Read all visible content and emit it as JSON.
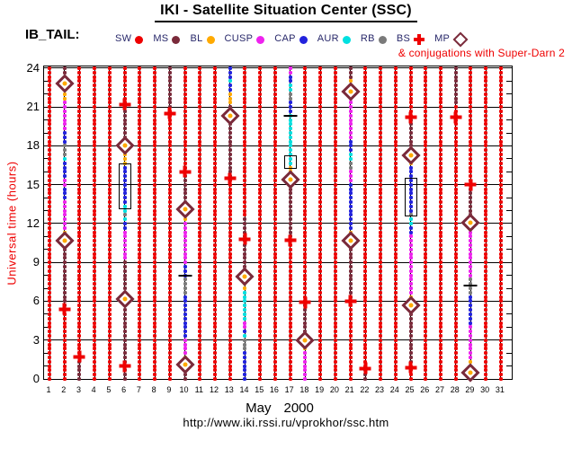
{
  "header": {
    "title": "IKI - Satellite Situation Center (SSC)",
    "dataset_label": "IB_TAIL:",
    "conjugation_note": "& conjugations with Super-Darn 2"
  },
  "legend": [
    {
      "label": "SW",
      "symbol": "dot",
      "color": "#ee0000"
    },
    {
      "label": "MS",
      "symbol": "dot",
      "color": "#7a2a3a"
    },
    {
      "label": "BL",
      "symbol": "dot",
      "color": "#ffaa00"
    },
    {
      "label": "CUSP",
      "symbol": "dot",
      "color": "#ee22ee"
    },
    {
      "label": "CAP",
      "symbol": "dot",
      "color": "#2222dd"
    },
    {
      "label": "AUR",
      "symbol": "dot",
      "color": "#00e0e0"
    },
    {
      "label": "RB",
      "symbol": "dot",
      "color": "#7a7a7a"
    },
    {
      "label": "BS",
      "symbol": "cross",
      "color": "#ee0000"
    },
    {
      "label": "MP",
      "symbol": "diamond",
      "color": "#7a2a3a"
    }
  ],
  "axes": {
    "y_label": "Universal time (hours)",
    "y_ticks": [
      0,
      3,
      6,
      9,
      12,
      15,
      18,
      21,
      24
    ],
    "y_range": [
      0,
      24
    ],
    "x_ticks": [
      1,
      2,
      3,
      4,
      5,
      6,
      7,
      8,
      9,
      10,
      11,
      12,
      13,
      14,
      15,
      16,
      17,
      18,
      19,
      20,
      21,
      22,
      23,
      24,
      25,
      26,
      27,
      28,
      29,
      30,
      31
    ],
    "month": "May",
    "year": "2000"
  },
  "footer": {
    "url": "http://www.iki.rssi.ru/vprokhor/ssc.htm"
  },
  "chart_data": {
    "type": "scatter",
    "title": "IKI - Satellite Situation Center (SSC) - IB_TAIL, May 2000",
    "x_unit": "day of month",
    "y_unit": "universal time, hours",
    "dot_interval_hours": 0.3333,
    "grid": true,
    "regions": {
      "SW": "#ee0000",
      "MS": "#7a2a3a",
      "BL": "#ffaa00",
      "CUSP": "#ee22ee",
      "CAP": "#2222dd",
      "AUR": "#00e0e0",
      "RB": "#7a7a7a"
    },
    "default_region": "SW",
    "day_segments": {
      "2": [
        [
          24,
          23.3,
          "MS"
        ],
        [
          23.3,
          21.4,
          "BL"
        ],
        [
          21.4,
          19.2,
          "CUSP"
        ],
        [
          19.2,
          18.3,
          "CAP"
        ],
        [
          18.3,
          17.3,
          "RB"
        ],
        [
          17.3,
          17.0,
          "AUR"
        ],
        [
          17.0,
          15.6,
          "CAP"
        ],
        [
          15.6,
          14.8,
          "CUSP"
        ],
        [
          14.8,
          13.7,
          "CAP"
        ],
        [
          13.7,
          11.4,
          "CUSP"
        ],
        [
          11.4,
          10.9,
          "BL"
        ],
        [
          10.9,
          5.6,
          "MS"
        ]
      ],
      "3": [
        [
          1.8,
          0,
          "MS"
        ]
      ],
      "6": [
        [
          21.3,
          18.0,
          "MS"
        ],
        [
          18.0,
          16.5,
          "BL"
        ],
        [
          16.5,
          13.4,
          "CAP"
        ],
        [
          13.4,
          12.9,
          "AUR"
        ],
        [
          12.9,
          12.5,
          "RB"
        ],
        [
          12.5,
          12.2,
          "AUR"
        ],
        [
          12.2,
          11.6,
          "CAP"
        ],
        [
          11.6,
          9.2,
          "CUSP"
        ],
        [
          9.2,
          0,
          "MS"
        ]
      ],
      "9": [
        [
          24,
          20.7,
          "MS"
        ]
      ],
      "10": [
        [
          15.9,
          13.2,
          "MS"
        ],
        [
          13.2,
          12.2,
          "BL"
        ],
        [
          12.2,
          9.0,
          "CUSP"
        ],
        [
          9.0,
          8.0,
          "CAP"
        ],
        [
          8.0,
          6.6,
          "RB"
        ],
        [
          6.6,
          3.2,
          "CAP"
        ],
        [
          3.2,
          2.0,
          "CUSP"
        ],
        [
          2.0,
          1.4,
          "BL"
        ],
        [
          1.4,
          0,
          "MS"
        ]
      ],
      "13": [
        [
          24,
          23.3,
          "CAP"
        ],
        [
          23.3,
          22.9,
          "AUR"
        ],
        [
          22.9,
          22.2,
          "CAP"
        ],
        [
          22.2,
          21.2,
          "BL"
        ],
        [
          21.2,
          15.5,
          "MS"
        ]
      ],
      "14": [
        [
          12.6,
          8.1,
          "MS"
        ],
        [
          8.1,
          6.9,
          "BL"
        ],
        [
          6.9,
          4.5,
          "AUR"
        ],
        [
          4.5,
          3.9,
          "CUSP"
        ],
        [
          3.9,
          3.5,
          "CAP"
        ],
        [
          3.5,
          3.2,
          "AUR"
        ],
        [
          3.2,
          2.1,
          "RB"
        ],
        [
          2.1,
          0,
          "CAP"
        ]
      ],
      "17": [
        [
          24,
          23.4,
          "CUSP"
        ],
        [
          23.4,
          22.8,
          "CAP"
        ],
        [
          22.8,
          22.2,
          "AUR"
        ],
        [
          22.2,
          21.4,
          "RB"
        ],
        [
          21.4,
          20.6,
          "CAP"
        ],
        [
          20.6,
          16.4,
          "AUR"
        ],
        [
          16.4,
          15.6,
          "BL"
        ],
        [
          15.6,
          10.8,
          "MS"
        ]
      ],
      "18": [
        [
          5.8,
          3.1,
          "MS"
        ],
        [
          3.1,
          2.3,
          "BL"
        ],
        [
          2.3,
          0,
          "CUSP"
        ]
      ],
      "21": [
        [
          24,
          23.2,
          "MS"
        ],
        [
          23.2,
          21.7,
          "BL"
        ],
        [
          21.7,
          18.5,
          "CUSP"
        ],
        [
          18.5,
          17.5,
          "CAP"
        ],
        [
          17.5,
          16.8,
          "AUR"
        ],
        [
          16.8,
          16.1,
          "RB"
        ],
        [
          16.1,
          15.2,
          "CUSP"
        ],
        [
          15.2,
          11.6,
          "CAP"
        ],
        [
          11.6,
          11.0,
          "BL"
        ],
        [
          11.0,
          6.1,
          "MS"
        ]
      ],
      "22": [
        [
          0.7,
          0,
          "MS"
        ]
      ],
      "25": [
        [
          20.1,
          17.5,
          "MS"
        ],
        [
          17.5,
          16.4,
          "BL"
        ],
        [
          16.4,
          12.8,
          "CAP"
        ],
        [
          12.8,
          12.4,
          "RB"
        ],
        [
          12.4,
          12.0,
          "AUR"
        ],
        [
          12.0,
          11.2,
          "CAP"
        ],
        [
          11.2,
          6.6,
          "CUSP"
        ],
        [
          6.6,
          6.2,
          "BL"
        ],
        [
          6.2,
          1.1,
          "MS"
        ]
      ],
      "28": [
        [
          24,
          21.2,
          "MS"
        ]
      ],
      "29": [
        [
          14.9,
          12.5,
          "MS"
        ],
        [
          12.5,
          11.5,
          "BL"
        ],
        [
          11.5,
          7.8,
          "CUSP"
        ],
        [
          7.8,
          6.5,
          "RB"
        ],
        [
          6.5,
          4.1,
          "CAP"
        ],
        [
          4.1,
          1.4,
          "CUSP"
        ],
        [
          1.4,
          0.9,
          "BL"
        ],
        [
          0.9,
          0,
          "MS"
        ]
      ]
    },
    "mp_diamonds": [
      [
        2,
        22.8
      ],
      [
        2,
        10.7
      ],
      [
        6,
        18.0
      ],
      [
        6,
        6.2
      ],
      [
        10,
        13.1
      ],
      [
        10,
        1.1
      ],
      [
        13,
        20.3
      ],
      [
        14,
        7.9
      ],
      [
        17,
        15.4
      ],
      [
        18,
        3.0
      ],
      [
        21,
        22.2
      ],
      [
        21,
        10.7
      ],
      [
        25,
        17.3
      ],
      [
        25,
        5.7
      ],
      [
        29,
        12.1
      ],
      [
        29,
        0.5
      ]
    ],
    "bs_crosses": [
      [
        2,
        5.4
      ],
      [
        3,
        1.7
      ],
      [
        6,
        21.2
      ],
      [
        6,
        1.0
      ],
      [
        9,
        20.5
      ],
      [
        10,
        16.0
      ],
      [
        13,
        15.5
      ],
      [
        14,
        10.8
      ],
      [
        17,
        10.7
      ],
      [
        18,
        5.9
      ],
      [
        21,
        6.0
      ],
      [
        22,
        0.8
      ],
      [
        25,
        20.2
      ],
      [
        25,
        0.9
      ],
      [
        28,
        20.2
      ],
      [
        29,
        15.0
      ]
    ],
    "conjunction_boxes": [
      [
        6,
        16.5,
        13.4
      ],
      [
        17,
        17.1,
        16.5
      ],
      [
        25,
        15.4,
        12.8
      ]
    ],
    "tick_markers": [
      [
        10,
        8.0
      ],
      [
        17,
        20.3
      ],
      [
        29,
        7.2
      ]
    ]
  }
}
